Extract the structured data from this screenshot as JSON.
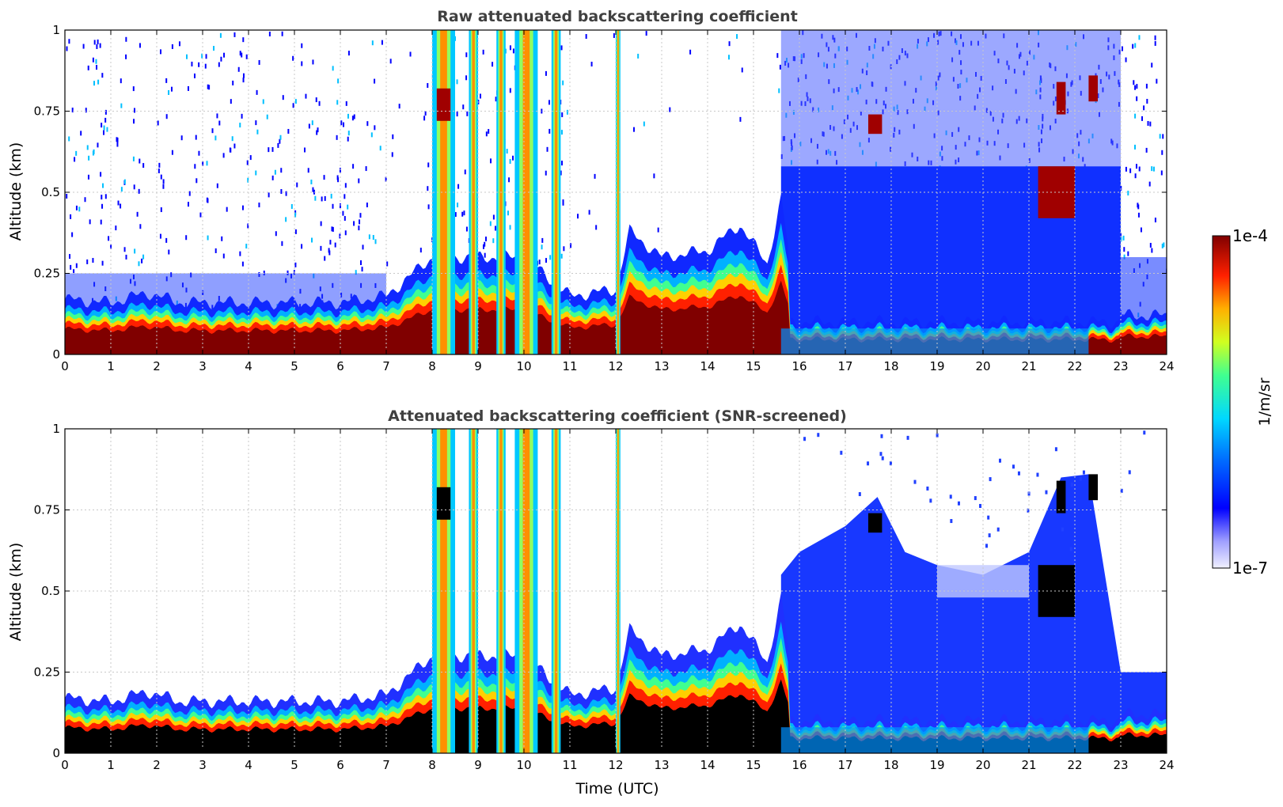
{
  "figure": {
    "colorbar": {
      "label": "1/m/sr",
      "max_label": "1e-4",
      "min_label": "1e-7",
      "scale": "log",
      "range": [
        1e-07,
        0.0001
      ]
    },
    "xlabel": "Time (UTC)",
    "colors": {
      "title": "#404040",
      "grid": "#c8c8c8",
      "axis": "#000000",
      "masked_black": "#000000"
    }
  },
  "chart_data": [
    {
      "type": "heatmap",
      "title": "Raw attenuated backscattering coefficient",
      "xlabel": "",
      "ylabel": "Altitude (km)",
      "xlim": [
        0,
        24
      ],
      "ylim": [
        0,
        1
      ],
      "xticks": [
        "0",
        "1",
        "2",
        "3",
        "4",
        "5",
        "6",
        "7",
        "8",
        "9",
        "10",
        "11",
        "12",
        "13",
        "14",
        "15",
        "16",
        "17",
        "18",
        "19",
        "20",
        "21",
        "22",
        "23",
        "24"
      ],
      "yticks": [
        "0",
        "0.25",
        "0.5",
        "0.75",
        "1"
      ],
      "grid": true,
      "colormap": "jet",
      "boundary_layer_top_km": [
        [
          0,
          0.17
        ],
        [
          1,
          0.16
        ],
        [
          1.8,
          0.19
        ],
        [
          2.5,
          0.16
        ],
        [
          4,
          0.16
        ],
        [
          5,
          0.16
        ],
        [
          6,
          0.16
        ],
        [
          7,
          0.18
        ],
        [
          8,
          0.3
        ],
        [
          9,
          0.3
        ],
        [
          10,
          0.3
        ],
        [
          11,
          0.18
        ],
        [
          12,
          0.2
        ],
        [
          12.3,
          0.38
        ],
        [
          13,
          0.3
        ],
        [
          14,
          0.32
        ],
        [
          14.7,
          0.4
        ],
        [
          15.3,
          0.28
        ],
        [
          15.6,
          0.48
        ],
        [
          16,
          0.1
        ],
        [
          23,
          0.12
        ],
        [
          24,
          0.12
        ]
      ],
      "cloud_columns_hours": [
        [
          8.0,
          8.5
        ],
        [
          8.8,
          9.0
        ],
        [
          9.4,
          9.6
        ],
        [
          9.8,
          10.3
        ],
        [
          10.6,
          10.8
        ],
        [
          12.0,
          12.1
        ]
      ],
      "background_noise_hours": [
        [
          15.6,
          23.0
        ]
      ],
      "screened": false
    },
    {
      "type": "heatmap",
      "title": "Attenuated backscattering coefficient (SNR-screened)",
      "xlabel": "Time (UTC)",
      "ylabel": "Altitude (km)",
      "xlim": [
        0,
        24
      ],
      "ylim": [
        0,
        1
      ],
      "xticks": [
        "0",
        "1",
        "2",
        "3",
        "4",
        "5",
        "6",
        "7",
        "8",
        "9",
        "10",
        "11",
        "12",
        "13",
        "14",
        "15",
        "16",
        "17",
        "18",
        "19",
        "20",
        "21",
        "22",
        "23",
        "24"
      ],
      "yticks": [
        "0",
        "0.25",
        "0.5",
        "0.75",
        "1"
      ],
      "grid": true,
      "colormap": "jet",
      "boundary_layer_top_km": [
        [
          0,
          0.17
        ],
        [
          1,
          0.16
        ],
        [
          1.8,
          0.19
        ],
        [
          2.5,
          0.16
        ],
        [
          4,
          0.16
        ],
        [
          5,
          0.16
        ],
        [
          6,
          0.16
        ],
        [
          7,
          0.18
        ],
        [
          8,
          0.3
        ],
        [
          9,
          0.3
        ],
        [
          10,
          0.3
        ],
        [
          11,
          0.18
        ],
        [
          12,
          0.2
        ],
        [
          12.3,
          0.38
        ],
        [
          13,
          0.3
        ],
        [
          14,
          0.32
        ],
        [
          14.7,
          0.4
        ],
        [
          15.3,
          0.28
        ],
        [
          15.6,
          0.48
        ],
        [
          16,
          0.1
        ],
        [
          23,
          0.12
        ],
        [
          24,
          0.12
        ]
      ],
      "cloud_columns_hours": [
        [
          8.0,
          8.5
        ],
        [
          8.8,
          9.0
        ],
        [
          9.4,
          9.6
        ],
        [
          9.8,
          10.3
        ],
        [
          10.6,
          10.8
        ],
        [
          12.0,
          12.1
        ]
      ],
      "aerosol_layer_top_km": [
        [
          15.6,
          0.55
        ],
        [
          16,
          0.62
        ],
        [
          17,
          0.7
        ],
        [
          17.7,
          0.79
        ],
        [
          18.3,
          0.62
        ],
        [
          19,
          0.58
        ],
        [
          20,
          0.55
        ],
        [
          21,
          0.62
        ],
        [
          21.7,
          0.85
        ],
        [
          22.3,
          0.86
        ],
        [
          23,
          0.25
        ],
        [
          24,
          0.25
        ]
      ],
      "screened": true
    }
  ]
}
